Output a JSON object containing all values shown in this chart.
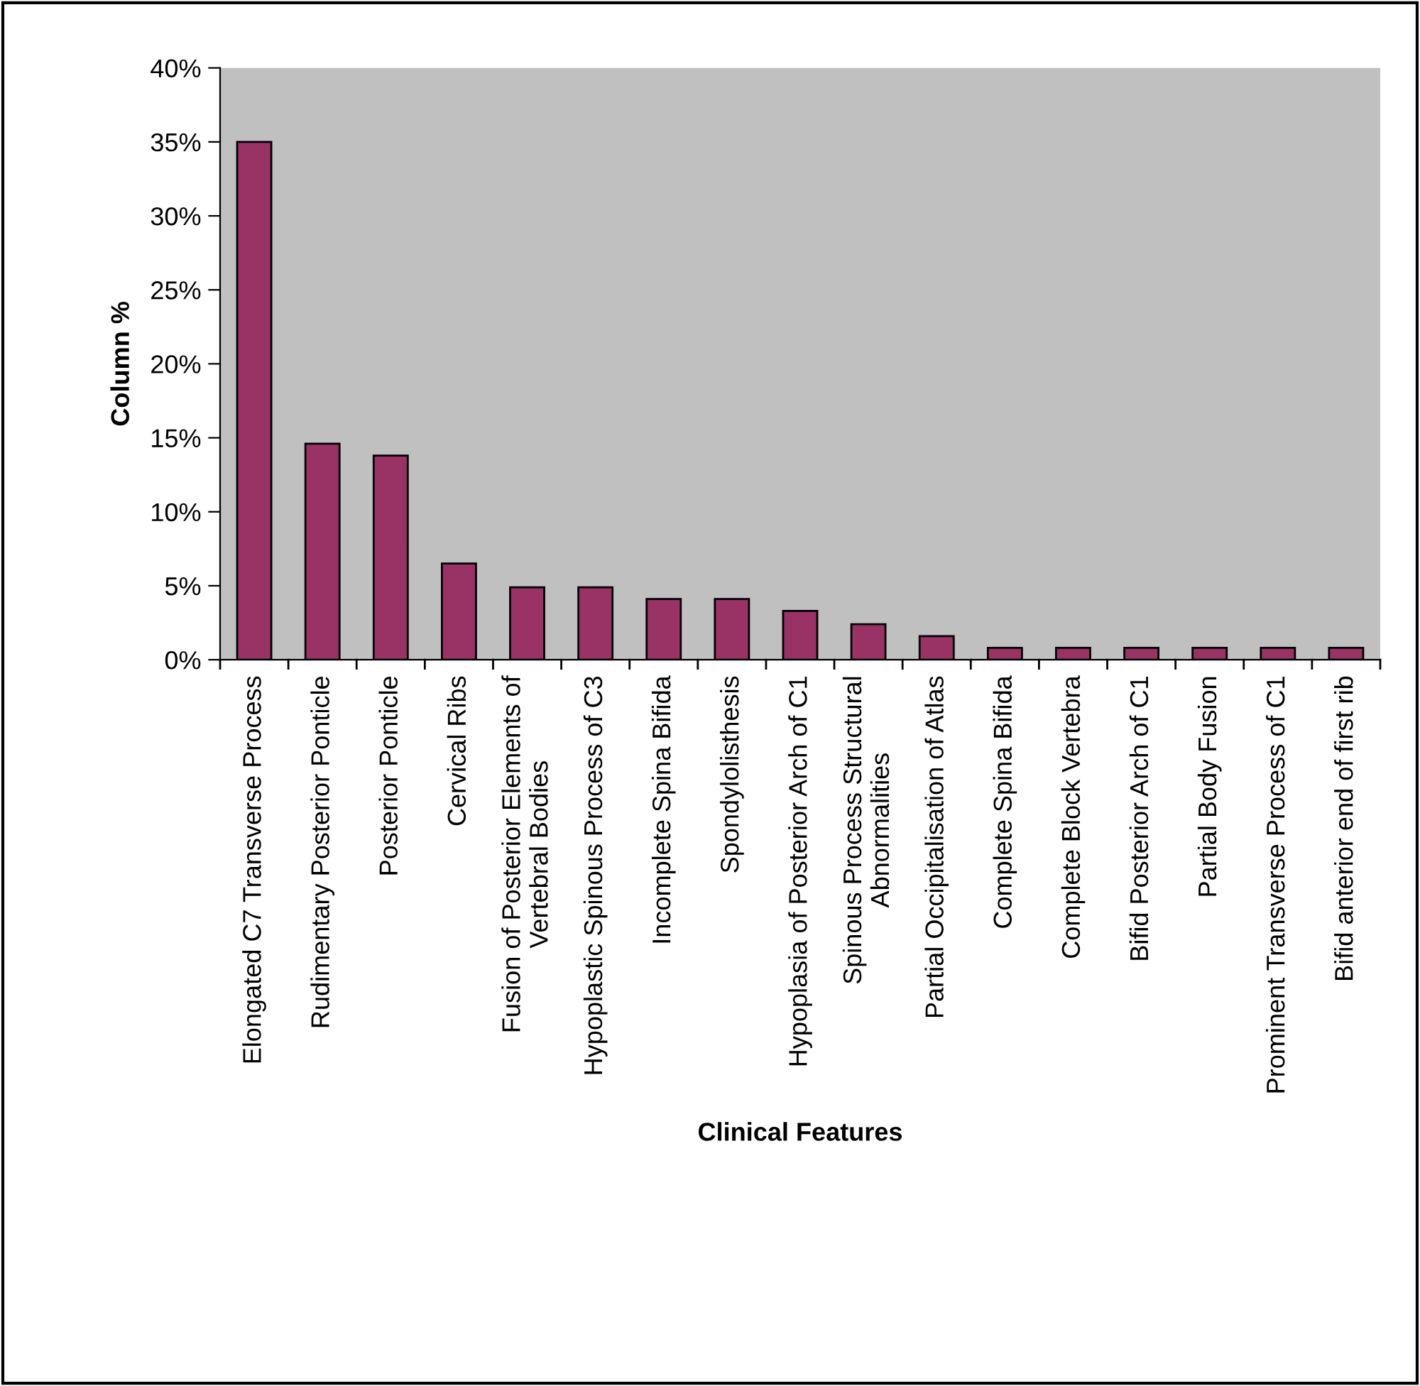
{
  "chart_data": {
    "type": "bar",
    "xlabel": "Clinical Features",
    "ylabel": "Column %",
    "categories": [
      "Elongated C7 Transverse Process",
      "Rudimentary Posterior Ponticle",
      "Posterior Ponticle",
      "Cervical Ribs",
      "Fusion of Posterior Elements of\nVertebral Bodies",
      "Hypoplastic Spinous Process of C3",
      "Incomplete Spina Bifida",
      "Spondylolisthesis",
      "Hypoplasia of Posterior Arch of C1",
      "Spinous Process Structural\nAbnormalities",
      "Partial Occipitalisation of Atlas",
      "Complete Spina Bifida",
      "Complete Block Vertebra",
      "Bifid Posterior Arch of C1",
      "Partial Body Fusion",
      "Prominent Transverse Process of C1",
      "Bifid anterior end of first rib"
    ],
    "values": [
      35.0,
      14.6,
      13.8,
      6.5,
      4.9,
      4.9,
      4.1,
      4.1,
      3.3,
      2.4,
      1.6,
      0.8,
      0.8,
      0.8,
      0.8,
      0.8,
      0.8
    ],
    "color": "#993366",
    "ylim": [
      0,
      40
    ],
    "yticks": [
      {
        "value": 0,
        "label": "0%"
      },
      {
        "value": 5,
        "label": "5%"
      },
      {
        "value": 10,
        "label": "10%"
      },
      {
        "value": 15,
        "label": "15%"
      },
      {
        "value": 20,
        "label": "20%"
      },
      {
        "value": 25,
        "label": "25%"
      },
      {
        "value": 30,
        "label": "30%"
      },
      {
        "value": 35,
        "label": "35%"
      },
      {
        "value": 40,
        "label": "40%"
      }
    ],
    "grid": false
  }
}
